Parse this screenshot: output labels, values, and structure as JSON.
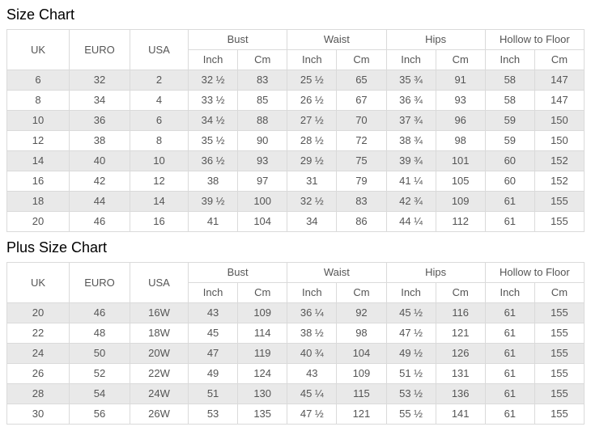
{
  "labels": {
    "inch": "Inch",
    "cm": "Cm"
  },
  "tables": [
    {
      "title": "Size Chart",
      "columns": {
        "uk": "UK",
        "euro": "EURO",
        "usa": "USA"
      },
      "groups": [
        "Bust",
        "Waist",
        "Hips",
        "Hollow to Floor"
      ],
      "rows": [
        [
          "6",
          "32",
          "2",
          "32 ½",
          "83",
          "25 ½",
          "65",
          "35 ¾",
          "91",
          "58",
          "147"
        ],
        [
          "8",
          "34",
          "4",
          "33 ½",
          "85",
          "26 ½",
          "67",
          "36 ¾",
          "93",
          "58",
          "147"
        ],
        [
          "10",
          "36",
          "6",
          "34 ½",
          "88",
          "27 ½",
          "70",
          "37 ¾",
          "96",
          "59",
          "150"
        ],
        [
          "12",
          "38",
          "8",
          "35 ½",
          "90",
          "28 ½",
          "72",
          "38 ¾",
          "98",
          "59",
          "150"
        ],
        [
          "14",
          "40",
          "10",
          "36 ½",
          "93",
          "29 ½",
          "75",
          "39 ¾",
          "101",
          "60",
          "152"
        ],
        [
          "16",
          "42",
          "12",
          "38",
          "97",
          "31",
          "79",
          "41 ¼",
          "105",
          "60",
          "152"
        ],
        [
          "18",
          "44",
          "14",
          "39 ½",
          "100",
          "32 ½",
          "83",
          "42 ¾",
          "109",
          "61",
          "155"
        ],
        [
          "20",
          "46",
          "16",
          "41",
          "104",
          "34",
          "86",
          "44 ¼",
          "112",
          "61",
          "155"
        ]
      ]
    },
    {
      "title": "Plus Size Chart",
      "columns": {
        "uk": "UK",
        "euro": "EURO",
        "usa": "USA"
      },
      "groups": [
        "Bust",
        "Waist",
        "Hips",
        "Hollow to Floor"
      ],
      "rows": [
        [
          "20",
          "46",
          "16W",
          "43",
          "109",
          "36 ¼",
          "92",
          "45 ½",
          "116",
          "61",
          "155"
        ],
        [
          "22",
          "48",
          "18W",
          "45",
          "114",
          "38 ½",
          "98",
          "47 ½",
          "121",
          "61",
          "155"
        ],
        [
          "24",
          "50",
          "20W",
          "47",
          "119",
          "40 ¾",
          "104",
          "49 ½",
          "126",
          "61",
          "155"
        ],
        [
          "26",
          "52",
          "22W",
          "49",
          "124",
          "43",
          "109",
          "51 ½",
          "131",
          "61",
          "155"
        ],
        [
          "28",
          "54",
          "24W",
          "51",
          "130",
          "45 ¼",
          "115",
          "53 ½",
          "136",
          "61",
          "155"
        ],
        [
          "30",
          "56",
          "26W",
          "53",
          "135",
          "47 ½",
          "121",
          "55 ½",
          "141",
          "61",
          "155"
        ]
      ]
    }
  ]
}
